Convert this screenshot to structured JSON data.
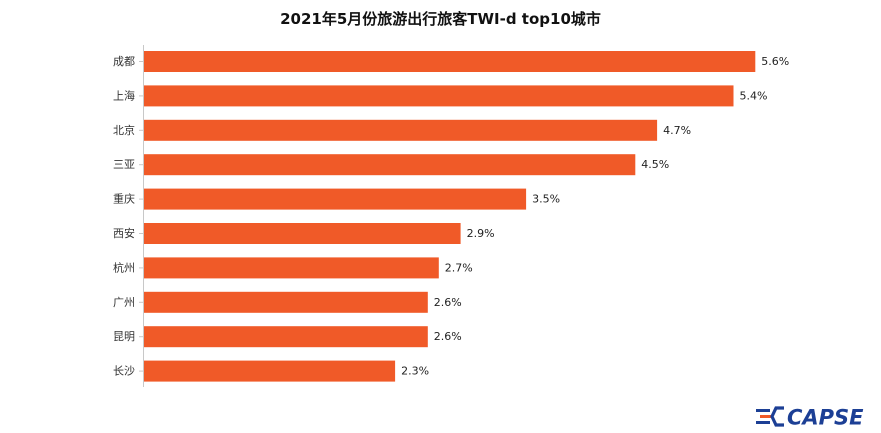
{
  "chart_data": {
    "type": "bar",
    "orientation": "horizontal",
    "title": "2021年5月份旅游出行旅客TWI-d top10城市",
    "xlabel": "",
    "ylabel": "",
    "categories": [
      "成都",
      "上海",
      "北京",
      "三亚",
      "重庆",
      "西安",
      "杭州",
      "广州",
      "昆明",
      "长沙"
    ],
    "values": [
      5.6,
      5.4,
      4.7,
      4.5,
      3.5,
      2.9,
      2.7,
      2.6,
      2.6,
      2.3
    ],
    "value_labels": [
      "5.6%",
      "5.4%",
      "4.7%",
      "4.5%",
      "3.5%",
      "2.9%",
      "2.7%",
      "2.6%",
      "2.6%",
      "2.3%"
    ],
    "xlim": [
      0,
      6.0
    ],
    "grid": false,
    "legend": "none",
    "bar_color": "#f05a28"
  },
  "logo": {
    "text": "CAPSE",
    "icon": "capse-logo-icon",
    "colors": {
      "blue": "#1c3f95",
      "orange": "#f05a28"
    }
  }
}
